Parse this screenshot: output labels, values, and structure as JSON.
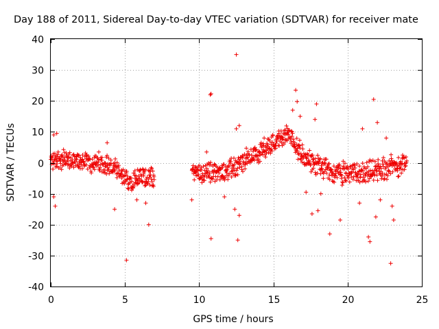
{
  "chart_data": {
    "type": "scatter",
    "title": "Day 188 of 2011, Sidereal Day-to-day VTEC variation (SDTVAR) for receiver mate",
    "xlabel": "GPS time / hours",
    "ylabel": "SDTVAR / TECUs",
    "xlim": [
      0,
      25
    ],
    "ylim": [
      -40,
      40
    ],
    "xticks": [
      0,
      5,
      10,
      15,
      20,
      25
    ],
    "yticks": [
      -40,
      -30,
      -20,
      -10,
      0,
      10,
      20,
      30,
      40
    ],
    "grid": true,
    "marker": "+",
    "color": "#ee0000",
    "trend": [
      {
        "x": 0.0,
        "y": 0.5
      },
      {
        "x": 0.5,
        "y": 1.5
      },
      {
        "x": 1.0,
        "y": 0.5
      },
      {
        "x": 2.0,
        "y": 0.5
      },
      {
        "x": 3.0,
        "y": 0.0
      },
      {
        "x": 3.8,
        "y": -0.5
      },
      {
        "x": 4.5,
        "y": -3.0
      },
      {
        "x": 5.0,
        "y": -5.5
      },
      {
        "x": 6.0,
        "y": -5.0
      },
      {
        "x": 7.0,
        "y": -4.5
      },
      {
        "x": 9.5,
        "y": -3.0
      },
      {
        "x": 10.5,
        "y": -3.0
      },
      {
        "x": 11.5,
        "y": -3.0
      },
      {
        "x": 12.5,
        "y": -1.0
      },
      {
        "x": 13.5,
        "y": 2.0
      },
      {
        "x": 14.5,
        "y": 5.0
      },
      {
        "x": 15.5,
        "y": 8.0
      },
      {
        "x": 16.0,
        "y": 9.0
      },
      {
        "x": 16.5,
        "y": 6.0
      },
      {
        "x": 17.0,
        "y": 2.0
      },
      {
        "x": 17.5,
        "y": 0.5
      },
      {
        "x": 18.0,
        "y": -1.0
      },
      {
        "x": 19.0,
        "y": -3.0
      },
      {
        "x": 20.0,
        "y": -3.5
      },
      {
        "x": 21.0,
        "y": -3.0
      },
      {
        "x": 22.0,
        "y": -2.5
      },
      {
        "x": 23.0,
        "y": -1.0
      },
      {
        "x": 24.0,
        "y": 0.0
      }
    ],
    "outliers": [
      {
        "x": 12.5,
        "y": 35.0
      },
      {
        "x": 10.75,
        "y": 22.0
      },
      {
        "x": 10.8,
        "y": 22.3
      },
      {
        "x": 16.5,
        "y": 23.5
      },
      {
        "x": 21.75,
        "y": 20.5
      },
      {
        "x": 16.6,
        "y": 19.8
      },
      {
        "x": 16.3,
        "y": 17.0
      },
      {
        "x": 17.9,
        "y": 19.0
      },
      {
        "x": 17.8,
        "y": 14.0
      },
      {
        "x": 12.7,
        "y": 12.0
      },
      {
        "x": 12.5,
        "y": 11.0
      },
      {
        "x": 22.0,
        "y": 13.0
      },
      {
        "x": 21.0,
        "y": 11.0
      },
      {
        "x": 22.6,
        "y": 8.0
      },
      {
        "x": 0.4,
        "y": 9.5
      },
      {
        "x": 0.2,
        "y": 9.0
      },
      {
        "x": 0.3,
        "y": -14.0
      },
      {
        "x": 0.2,
        "y": -11.0
      },
      {
        "x": 3.8,
        "y": 6.5
      },
      {
        "x": 6.4,
        "y": -13.0
      },
      {
        "x": 6.6,
        "y": -20.0
      },
      {
        "x": 5.1,
        "y": -31.5
      },
      {
        "x": 9.5,
        "y": -12.0
      },
      {
        "x": 10.8,
        "y": -24.5
      },
      {
        "x": 12.6,
        "y": -25.0
      },
      {
        "x": 12.7,
        "y": -17.0
      },
      {
        "x": 12.4,
        "y": -15.0
      },
      {
        "x": 11.7,
        "y": -11.0
      },
      {
        "x": 18.2,
        "y": -10.0
      },
      {
        "x": 18.0,
        "y": -15.5
      },
      {
        "x": 19.5,
        "y": -18.5
      },
      {
        "x": 18.8,
        "y": -23.0
      },
      {
        "x": 21.4,
        "y": -24.0
      },
      {
        "x": 21.5,
        "y": -25.5
      },
      {
        "x": 21.9,
        "y": -17.5
      },
      {
        "x": 22.9,
        "y": -32.5
      },
      {
        "x": 23.1,
        "y": -18.5
      },
      {
        "x": 23.0,
        "y": -14.0
      },
      {
        "x": 22.2,
        "y": -12.0
      },
      {
        "x": 4.3,
        "y": -15.0
      },
      {
        "x": 5.8,
        "y": -12.0
      },
      {
        "x": 17.2,
        "y": -9.5
      },
      {
        "x": 10.5,
        "y": 3.5
      },
      {
        "x": 17.6,
        "y": -16.5
      },
      {
        "x": 20.8,
        "y": -13.0
      },
      {
        "x": 16.8,
        "y": 15.0
      }
    ]
  }
}
